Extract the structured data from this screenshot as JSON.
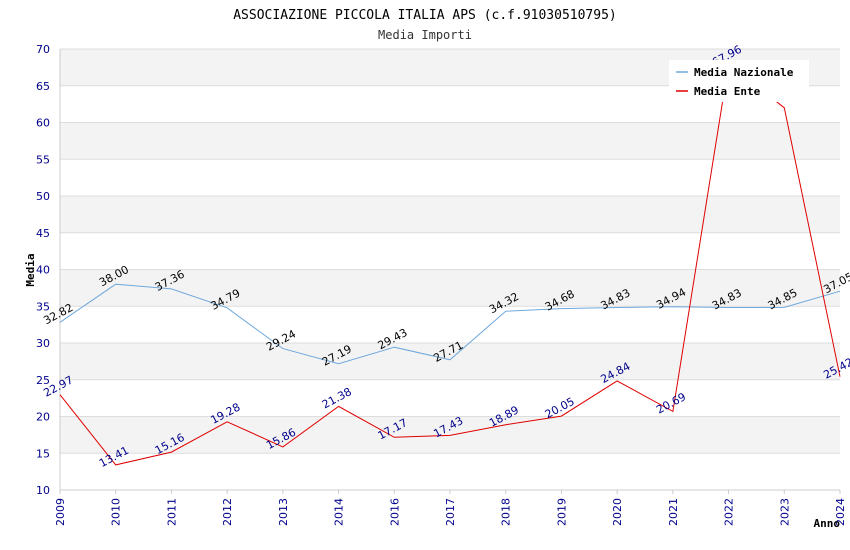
{
  "chart_data": {
    "type": "line",
    "title": "ASSOCIAZIONE PICCOLA ITALIA APS (c.f.91030510795)",
    "subtitle": "Media Importi",
    "xlabel": "Anno",
    "ylabel": "Media",
    "ylim": [
      10,
      70
    ],
    "yticks": [
      "10",
      "15",
      "20",
      "25",
      "30",
      "35",
      "40",
      "45",
      "50",
      "55",
      "60",
      "65",
      "70"
    ],
    "categories": [
      "2009",
      "2010",
      "2011",
      "2012",
      "2013",
      "2014",
      "2016",
      "2017",
      "2018",
      "2019",
      "2020",
      "2021",
      "2022",
      "2023",
      "2024"
    ],
    "legend_position": "top-right",
    "series": [
      {
        "name": "Media Nazionale",
        "color": "#6fa8dc",
        "label_color": "#000000",
        "values": [
          32.82,
          38.0,
          37.36,
          34.79,
          29.24,
          27.19,
          29.43,
          27.71,
          34.32,
          34.68,
          34.83,
          34.94,
          34.83,
          34.85,
          37.05
        ],
        "labels": [
          "32.82",
          "38.00",
          "37.36",
          "34.79",
          "29.24",
          "27.19",
          "29.43",
          "27.71",
          "34.32",
          "34.68",
          "34.83",
          "34.94",
          "34.83",
          "34.85",
          "37.05"
        ]
      },
      {
        "name": "Media Ente",
        "color": "#e00000",
        "label_color": "#00008b",
        "values": [
          22.97,
          13.41,
          15.16,
          19.28,
          15.86,
          21.38,
          17.17,
          17.43,
          18.89,
          20.05,
          24.84,
          20.69,
          67.96,
          62.0,
          25.42
        ],
        "labels": [
          "22.97",
          "13.41",
          "15.16",
          "19.28",
          "15.86",
          "21.38",
          "17.17",
          "17.43",
          "18.89",
          "20.05",
          "24.84",
          "20.69",
          "67.96",
          null,
          "25.42"
        ]
      }
    ]
  }
}
